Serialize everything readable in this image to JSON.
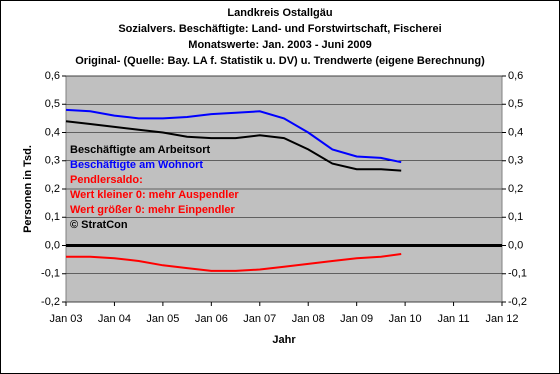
{
  "chart_data": {
    "type": "line",
    "title": "Landkreis Ostallgäu",
    "subtitle": [
      "Sozialvers. Beschäftigte: Land- und Forstwirtschaft, Fischerei",
      "Monatswerte: Jan. 2003 - Juni 2009",
      "Original- (Quelle: Bay. LA f. Statistik u. DV) u. Trendwerte (eigene Berechnung)"
    ],
    "xlabel": "Jahr",
    "ylabel": "Personen in Tsd.",
    "x": [
      2003,
      2003.5,
      2004,
      2004.5,
      2005,
      2005.5,
      2006,
      2006.5,
      2007,
      2007.5,
      2008,
      2008.5,
      2009,
      2009.5,
      2009.92
    ],
    "series": [
      {
        "name": "Beschäftigte am Arbeitsort",
        "color": "#000000",
        "values": [
          0.44,
          0.43,
          0.42,
          0.41,
          0.4,
          0.385,
          0.38,
          0.38,
          0.39,
          0.38,
          0.34,
          0.29,
          0.27,
          0.27,
          0.265
        ]
      },
      {
        "name": "Beschäftigte am Wohnort",
        "color": "#0000ff",
        "values": [
          0.48,
          0.475,
          0.46,
          0.45,
          0.45,
          0.455,
          0.465,
          0.47,
          0.475,
          0.45,
          0.4,
          0.34,
          0.315,
          0.31,
          0.295
        ]
      },
      {
        "name": "Pendlersaldo:",
        "color": "#ff0000",
        "values": [
          -0.04,
          -0.04,
          -0.045,
          -0.055,
          -0.07,
          -0.08,
          -0.09,
          -0.09,
          -0.085,
          -0.075,
          -0.065,
          -0.055,
          -0.045,
          -0.04,
          -0.03
        ]
      }
    ],
    "annotations": [
      {
        "text": "Wert kleiner 0: mehr Auspendler",
        "color": "#ff0000"
      },
      {
        "text": "Wert größer 0: mehr Einpendler",
        "color": "#ff0000"
      },
      {
        "text": "© StratCon",
        "color": "#000000"
      }
    ],
    "xlim": [
      2003,
      2012
    ],
    "xticks": [
      {
        "value": 2003,
        "label": "Jan 03"
      },
      {
        "value": 2004,
        "label": "Jan 04"
      },
      {
        "value": 2005,
        "label": "Jan 05"
      },
      {
        "value": 2006,
        "label": "Jan 06"
      },
      {
        "value": 2007,
        "label": "Jan 07"
      },
      {
        "value": 2008,
        "label": "Jan 08"
      },
      {
        "value": 2009,
        "label": "Jan 09"
      },
      {
        "value": 2010,
        "label": "Jan 10"
      },
      {
        "value": 2011,
        "label": "Jan 11"
      },
      {
        "value": 2012,
        "label": "Jan 12"
      }
    ],
    "ylim": [
      -0.2,
      0.6
    ],
    "yticks": [
      {
        "value": -0.2,
        "label": "-0,2"
      },
      {
        "value": -0.1,
        "label": "-0,1"
      },
      {
        "value": 0,
        "label": "0,0"
      },
      {
        "value": 0.1,
        "label": "0,1"
      },
      {
        "value": 0.2,
        "label": "0,2"
      },
      {
        "value": 0.3,
        "label": "0,3"
      },
      {
        "value": 0.4,
        "label": "0,4"
      },
      {
        "value": 0.5,
        "label": "0,5"
      },
      {
        "value": 0.6,
        "label": "0,6"
      }
    ],
    "y2lim": [
      -0.2,
      0.6
    ],
    "y2ticks": [
      {
        "value": -0.2,
        "label": "-0,2"
      },
      {
        "value": -0.1,
        "label": "-0,1"
      },
      {
        "value": 0,
        "label": "0,0"
      },
      {
        "value": 0.1,
        "label": "0,1"
      },
      {
        "value": 0.2,
        "label": "0,2"
      },
      {
        "value": 0.3,
        "label": "0,3"
      },
      {
        "value": 0.4,
        "label": "0,4"
      },
      {
        "value": 0.5,
        "label": "0,5"
      },
      {
        "value": 0.6,
        "label": "0,6"
      }
    ],
    "grid": true,
    "plot_background": "#c0c0c0"
  }
}
